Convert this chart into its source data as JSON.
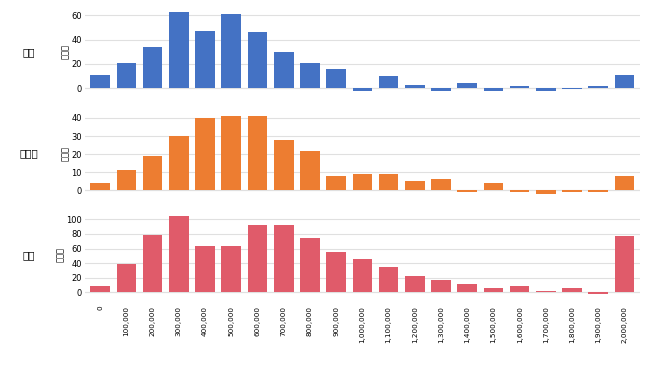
{
  "categories": [
    0,
    100000,
    200000,
    300000,
    400000,
    500000,
    600000,
    700000,
    800000,
    900000,
    1000000,
    1100000,
    1200000,
    1300000,
    1400000,
    1500000,
    1600000,
    1700000,
    1800000,
    1900000,
    2000000
  ],
  "mild": [
    11,
    21,
    34,
    63,
    47,
    61,
    46,
    30,
    21,
    16,
    -2,
    10,
    3,
    -2,
    4,
    -2,
    2,
    -2,
    -1,
    2,
    11
  ],
  "moderate": [
    4,
    11,
    19,
    30,
    40,
    41,
    41,
    28,
    22,
    8,
    9,
    9,
    5,
    6,
    -1,
    4,
    -1,
    -2,
    -1,
    -1,
    8
  ],
  "severe": [
    8,
    39,
    79,
    105,
    64,
    64,
    93,
    93,
    75,
    55,
    45,
    35,
    22,
    16,
    11,
    6,
    8,
    2,
    6,
    -2,
    77
  ],
  "mild_color": "#4472C4",
  "moderate_color": "#ED7D31",
  "severe_color": "#E05B6A",
  "mild_label": "軽症",
  "moderate_label": "中等症",
  "severe_label": "重症",
  "ylabel": "症例数",
  "mild_ylim": [
    -8,
    68
  ],
  "moderate_ylim": [
    -5,
    46
  ],
  "severe_ylim": [
    -12,
    115
  ],
  "mild_yticks": [
    0,
    20,
    40,
    60
  ],
  "moderate_yticks": [
    0,
    10,
    20,
    30,
    40
  ],
  "severe_yticks": [
    0,
    20,
    40,
    60,
    80,
    100
  ],
  "background_color": "#FFFFFF",
  "plot_bg_color": "#FFFFFF",
  "bar_width": 0.75,
  "grid_color": "#E0E0E0"
}
